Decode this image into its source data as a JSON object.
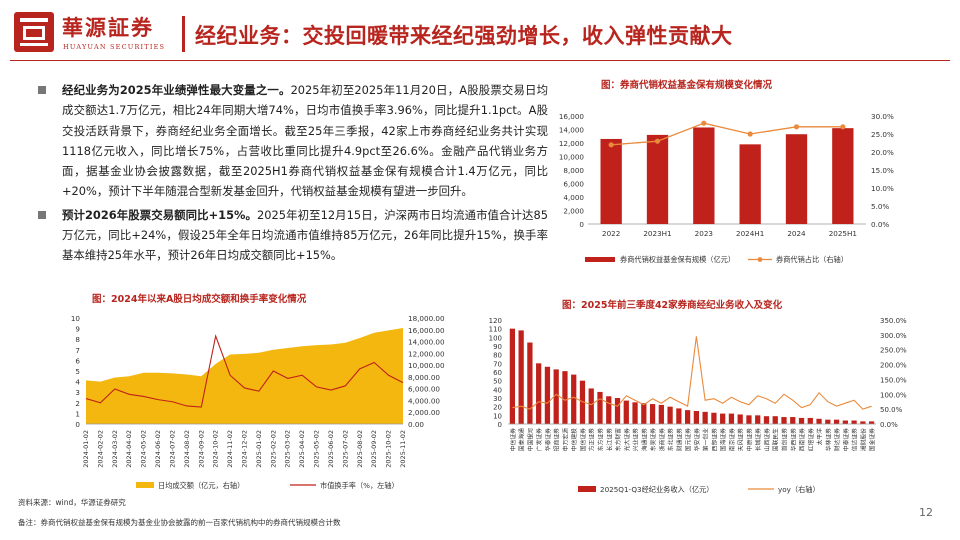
{
  "header": {
    "logo_name": "華源証券",
    "logo_en": "HUAYUAN SECURITIES",
    "title": "经纪业务：交投回暖带来经纪强劲增长，收入弹性贡献大"
  },
  "bullets": [
    {
      "lead": "经纪业务为2025年业绩弹性最大变量之一。",
      "text": "2025年初至2025年11月20日，A股股票交易日均成交额达1.7万亿元，相比24年同期大增74%，日均市值换手率3.96%，同比提升1.1pct。A股交投活跃背景下，券商经纪业务全面增长。截至25年三季报，42家上市券商经纪业务共计实现1118亿元收入，同比增长75%，占营收比重同比提升4.9pct至26.6%。金融产品代销业务方面，据基金业协会披露数据，截至2025H1券商代销权益基金保有规模合计1.4万亿元，同比+20%，预计下半年随混合型新发基金回升，代销权益基金规模有望进一步回升。"
    },
    {
      "lead": "预计2026年股票交易额同比+15%。",
      "text": "2025年初至12月15日，沪深两市日均流通市值合计达85万亿元，同比+24%，假设25年全年日均流通市值维持85万亿元，26年同比提升15%，换手率基本维持25年水平，预计26年日均成交额同比+15%。"
    }
  ],
  "chart_data": [
    {
      "type": "bar",
      "caption": "图：券商代销权益基金保有规模变化情况",
      "categories": [
        "2022",
        "2023H1",
        "2023",
        "2024H1",
        "2024",
        "2025H1"
      ],
      "series": [
        {
          "name": "券商代销权益基金保有规模（亿元）",
          "type": "bar",
          "axis": "left",
          "values": [
            12600,
            13200,
            14300,
            11800,
            13300,
            14200
          ]
        },
        {
          "name": "券商代销占比（右轴）",
          "type": "line",
          "axis": "right",
          "values": [
            0.22,
            0.23,
            0.28,
            0.25,
            0.27,
            0.27
          ]
        }
      ],
      "ylim": [
        0,
        16000
      ],
      "y_ticks": [
        "0",
        "2,000",
        "4,000",
        "6,000",
        "8,000",
        "10,000",
        "12,000",
        "14,000",
        "16,000"
      ],
      "y2lim": [
        0,
        0.3
      ],
      "y2_ticks": [
        "0.0%",
        "5.0%",
        "10.0%",
        "15.0%",
        "20.0%",
        "25.0%",
        "30.0%"
      ],
      "colors": {
        "bar": "#c0211b",
        "line": "#e98a3c"
      },
      "legend": "bottom"
    },
    {
      "type": "area",
      "caption": "图：2024年以来A股日均成交额和换手率变化情况",
      "x_labels": [
        "2024-01-02",
        "2024-02-02",
        "2024-03-02",
        "2024-04-02",
        "2024-05-02",
        "2024-06-02",
        "2024-07-02",
        "2024-08-02",
        "2024-09-02",
        "2024-10-02",
        "2024-11-02",
        "2024-12-02",
        "2025-01-02",
        "2025-02-02",
        "2025-03-02",
        "2025-04-02",
        "2025-05-02",
        "2025-06-02",
        "2025-07-02",
        "2025-08-02",
        "2025-09-02",
        "2025-10-02",
        "2025-11-02"
      ],
      "series": [
        {
          "name": "日均成交额（亿元，右轴）",
          "type": "area",
          "axis": "right",
          "values": [
            7400,
            7200,
            7900,
            8100,
            8700,
            8700,
            8600,
            8400,
            8100,
            10200,
            11800,
            11900,
            12100,
            12600,
            12900,
            13200,
            13400,
            13500,
            13800,
            14600,
            15500,
            15900,
            16300
          ]
        },
        {
          "name": "市值换手率（%，左轴）",
          "type": "line",
          "axis": "left",
          "values": [
            2.4,
            2.0,
            3.3,
            2.8,
            2.6,
            2.3,
            2.1,
            1.7,
            1.6,
            8.3,
            4.6,
            3.4,
            3.1,
            5.0,
            4.3,
            4.6,
            3.5,
            3.2,
            3.6,
            5.2,
            5.8,
            4.6,
            3.9
          ]
        }
      ],
      "ylim": [
        0,
        10
      ],
      "y_ticks": [
        "0",
        "1",
        "2",
        "3",
        "4",
        "5",
        "6",
        "7",
        "8",
        "9",
        "10"
      ],
      "y2lim": [
        0,
        18000
      ],
      "y2_ticks": [
        "0.00",
        "2,000.00",
        "4,000.00",
        "6,000.00",
        "8,000.00",
        "10,000.00",
        "12,000.00",
        "14,000.00",
        "16,000.00",
        "18,000.00"
      ],
      "colors": {
        "area": "#f3b70f",
        "line": "#c0211b"
      },
      "legend": "bottom"
    },
    {
      "type": "bar",
      "caption": "图：2025年前三季度42家券商经纪业务收入及变化",
      "categories": [
        "中信证券",
        "国泰海通",
        "中国银河",
        "广发证券",
        "华泰证券",
        "招商证券",
        "申万宏源",
        "中信建投",
        "国信证券",
        "方正证券",
        "东方证券",
        "长江证券",
        "东方财富",
        "光大证券",
        "兴业证券",
        "海通证券",
        "东吴证券",
        "浙商证券",
        "东北证券",
        "财通证券",
        "国元证券",
        "华安证券",
        "第一创业",
        "西部证券",
        "国海证券",
        "南京证券",
        "天风证券",
        "中原证券",
        "长城证券",
        "山西证券",
        "国联民生",
        "首创证券",
        "华西证券",
        "西南证券",
        "红塔证券",
        "太平洋",
        "华林证券",
        "财达证券",
        "中泰证券",
        "信达证券",
        "湘财股份",
        "国金证券"
      ],
      "series": [
        {
          "name": "2025Q1-Q3经纪业务收入（亿元）",
          "type": "bar",
          "axis": "left",
          "values": [
            110,
            108,
            94,
            70,
            66,
            63,
            61,
            57,
            50,
            41,
            37,
            32,
            30,
            27,
            25,
            24,
            23,
            22,
            20,
            18,
            16,
            15,
            14,
            13,
            12,
            12,
            11,
            10,
            10,
            9,
            9,
            8,
            8,
            7,
            7,
            6,
            5,
            5,
            4,
            4,
            3,
            3
          ]
        },
        {
          "name": "yoy（右轴）",
          "type": "line",
          "axis": "right",
          "values": [
            55,
            60,
            50,
            75,
            70,
            100,
            80,
            90,
            75,
            65,
            85,
            70,
            60,
            95,
            80,
            65,
            85,
            70,
            90,
            75,
            60,
            295,
            80,
            85,
            70,
            90,
            75,
            65,
            95,
            85,
            70,
            100,
            80,
            55,
            65,
            105,
            75,
            60,
            70,
            80,
            50,
            60
          ]
        }
      ],
      "ylim": [
        0,
        120
      ],
      "y_ticks": [
        "0",
        "10",
        "20",
        "30",
        "40",
        "50",
        "60",
        "70",
        "80",
        "90",
        "100",
        "110",
        "120"
      ],
      "y2lim": [
        0,
        3.5
      ],
      "y2_ticks": [
        "0.0%",
        "50.0%",
        "100.0%",
        "150.0%",
        "200.0%",
        "250.0%",
        "300.0%",
        "350.0%"
      ],
      "colors": {
        "bar": "#c0211b",
        "line": "#e98a3c"
      },
      "legend": "bottom"
    }
  ],
  "footer": {
    "source": "资料来源：wind，华源证券研究",
    "note": "备注：券商代销权益基金保有规模为基金业协会披露的前一百家代销机构中的券商代销规模合计数",
    "page": "12"
  }
}
